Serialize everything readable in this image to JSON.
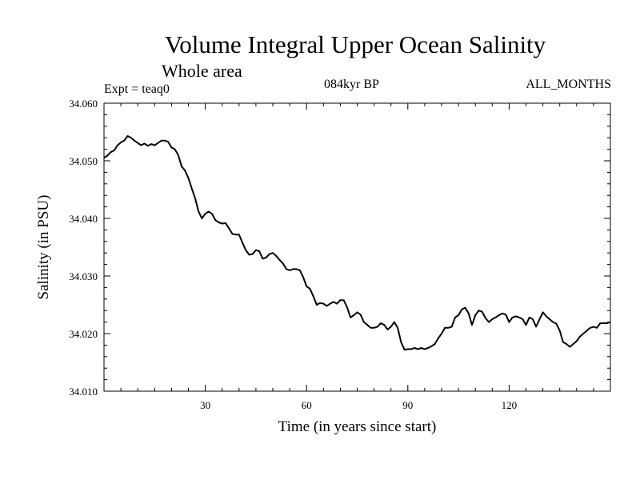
{
  "chart_data": {
    "type": "line",
    "title": "Volume Integral Upper Ocean Salinity",
    "subtitle": "Whole area",
    "left_note": "Expt = teaq0",
    "center_note": "084kyr BP",
    "right_note": "ALL_MONTHS",
    "xlabel": "Time (in years since start)",
    "ylabel": "Salinity (in PSU)",
    "xlim": [
      0,
      150
    ],
    "ylim": [
      34.01,
      34.06
    ],
    "x_ticks": [
      30,
      60,
      90,
      120
    ],
    "x_tick_labels": [
      "30",
      "60",
      "90",
      "120"
    ],
    "y_ticks": [
      34.01,
      34.02,
      34.03,
      34.04,
      34.05,
      34.06
    ],
    "y_tick_labels": [
      "34.010",
      "34.020",
      "34.030",
      "34.040",
      "34.050",
      "34.060"
    ],
    "series": [
      {
        "name": "salinity",
        "x": [
          0,
          1,
          2,
          3,
          4,
          5,
          6,
          7,
          8,
          9,
          10,
          11,
          12,
          13,
          14,
          15,
          16,
          17,
          18,
          19,
          20,
          21,
          22,
          23,
          24,
          25,
          26,
          27,
          28,
          29,
          30,
          31,
          32,
          33,
          34,
          35,
          36,
          37,
          38,
          39,
          40,
          41,
          42,
          43,
          44,
          45,
          46,
          47,
          48,
          49,
          50,
          51,
          52,
          53,
          54,
          55,
          56,
          57,
          58,
          59,
          60,
          61,
          62,
          63,
          64,
          65,
          66,
          67,
          68,
          69,
          70,
          71,
          72,
          73,
          74,
          75,
          76,
          77,
          78,
          79,
          80,
          81,
          82,
          83,
          84,
          85,
          86,
          87,
          88,
          89,
          90,
          91,
          92,
          93,
          94,
          95,
          96,
          97,
          98,
          99,
          100,
          101,
          102,
          103,
          104,
          105,
          106,
          107,
          108,
          109,
          110,
          111,
          112,
          113,
          114,
          115,
          116,
          117,
          118,
          119,
          120,
          121,
          122,
          123,
          124,
          125,
          126,
          127,
          128,
          129,
          130,
          131,
          132,
          133,
          134,
          135,
          136,
          137,
          138,
          139,
          140,
          141,
          142,
          143,
          144,
          145,
          146,
          147,
          148,
          149,
          150
        ],
        "values": [
          34.0505,
          34.0509,
          34.0515,
          34.0518,
          34.0527,
          34.0532,
          34.0535,
          34.0543,
          34.054,
          34.0535,
          34.0531,
          34.0527,
          34.053,
          34.0526,
          34.0529,
          34.0527,
          34.0531,
          34.0535,
          34.0535,
          34.0533,
          34.0523,
          34.052,
          34.051,
          34.049,
          34.0483,
          34.047,
          34.0452,
          34.0435,
          34.0412,
          34.04,
          34.0408,
          34.0412,
          34.0408,
          34.0397,
          34.0393,
          34.0391,
          34.0392,
          34.0383,
          34.0373,
          34.0372,
          34.0372,
          34.0358,
          34.0345,
          34.0337,
          34.0338,
          34.0345,
          34.0343,
          34.033,
          34.0332,
          34.0338,
          34.034,
          34.0335,
          34.0328,
          34.0322,
          34.0312,
          34.031,
          34.0312,
          34.0312,
          34.031,
          34.0298,
          34.0282,
          34.0278,
          34.0265,
          34.025,
          34.0253,
          34.0252,
          34.0248,
          34.0252,
          34.0255,
          34.0252,
          34.0258,
          34.0258,
          34.0246,
          34.0228,
          34.0232,
          34.0237,
          34.0233,
          34.022,
          34.0215,
          34.021,
          34.021,
          34.0212,
          34.0218,
          34.0215,
          34.0207,
          34.0212,
          34.022,
          34.021,
          34.0185,
          34.0172,
          34.0173,
          34.0173,
          34.0175,
          34.0173,
          34.0175,
          34.0173,
          34.0175,
          34.0178,
          34.0182,
          34.0192,
          34.02,
          34.021,
          34.021,
          34.0212,
          34.0228,
          34.0232,
          34.0242,
          34.0245,
          34.0235,
          34.0215,
          34.0232,
          34.024,
          34.0238,
          34.0227,
          34.022,
          34.0225,
          34.0228,
          34.0232,
          34.0235,
          34.0233,
          34.022,
          34.0228,
          34.023,
          34.0228,
          34.0225,
          34.0215,
          34.0228,
          34.0225,
          34.0212,
          34.0225,
          34.0237,
          34.023,
          34.0225,
          34.022,
          34.0217,
          34.0205,
          34.0185,
          34.0182,
          34.0177,
          34.0182,
          34.0187,
          34.0195,
          34.02,
          34.0205,
          34.021,
          34.0212,
          34.021,
          34.0218,
          34.0218,
          34.0218,
          34.022
        ]
      }
    ]
  }
}
